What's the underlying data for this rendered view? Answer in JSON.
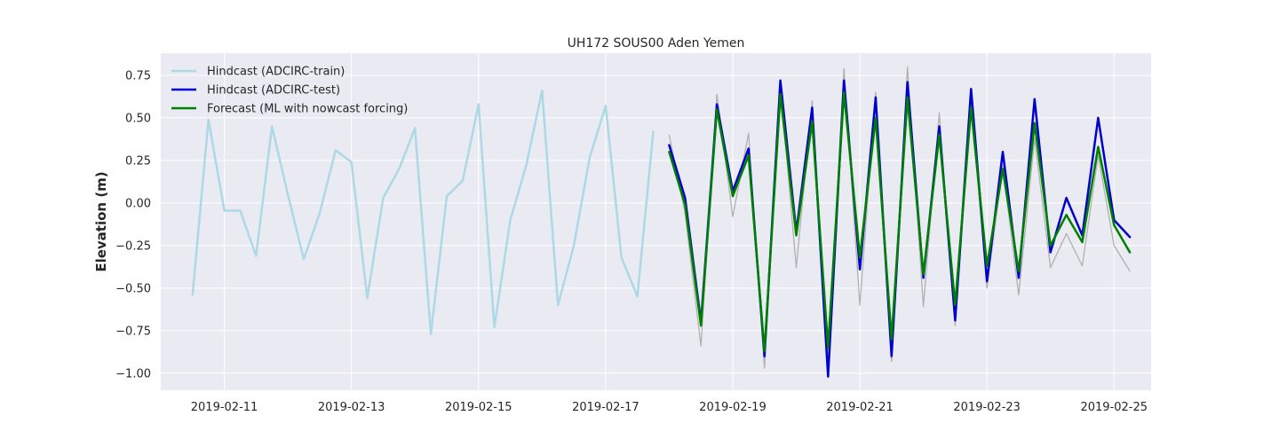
{
  "chart_data": {
    "type": "line",
    "title": "UH172 SOUS00 Aden Yemen",
    "xlabel": "",
    "ylabel": "Elevation (m)",
    "xlim": [
      "2019-02-10T00:00",
      "2019-02-25T14:00"
    ],
    "ylim": [
      -1.1,
      0.88
    ],
    "x_ticks": [
      "2019-02-11",
      "2019-02-13",
      "2019-02-15",
      "2019-02-17",
      "2019-02-19",
      "2019-02-21",
      "2019-02-23",
      "2019-02-25"
    ],
    "y_ticks": [
      0.75,
      0.5,
      0.25,
      0.0,
      -0.25,
      -0.5,
      -0.75,
      -1.0
    ],
    "y_tick_labels": [
      "0.75",
      "0.50",
      "0.25",
      "0.00",
      "−0.25",
      "−0.50",
      "−0.75",
      "−1.00"
    ],
    "grid": true,
    "legend_position": "top-left",
    "background": "#eaeaf2",
    "series": [
      {
        "name": "Hindcast (ADCIRC-train)",
        "color": "#add8e6",
        "width": 2.5,
        "legend": true,
        "x": [
          "2019-02-10T12:00",
          "2019-02-10T18:00",
          "2019-02-11T00:00",
          "2019-02-11T06:00",
          "2019-02-11T12:00",
          "2019-02-11T18:00",
          "2019-02-12T00:00",
          "2019-02-12T06:00",
          "2019-02-12T12:00",
          "2019-02-12T18:00",
          "2019-02-13T00:00",
          "2019-02-13T06:00",
          "2019-02-13T12:00",
          "2019-02-13T18:00",
          "2019-02-14T00:00",
          "2019-02-14T06:00",
          "2019-02-14T12:00",
          "2019-02-14T18:00",
          "2019-02-15T00:00",
          "2019-02-15T06:00",
          "2019-02-15T12:00",
          "2019-02-15T18:00",
          "2019-02-16T00:00",
          "2019-02-16T06:00",
          "2019-02-16T12:00",
          "2019-02-16T18:00",
          "2019-02-17T00:00",
          "2019-02-17T06:00",
          "2019-02-17T12:00",
          "2019-02-17T18:00"
        ],
        "y": [
          -0.54,
          0.49,
          -0.045,
          -0.045,
          -0.31,
          0.45,
          0.05,
          -0.33,
          -0.06,
          0.31,
          0.24,
          -0.56,
          0.03,
          0.2,
          0.44,
          -0.77,
          0.04,
          0.13,
          0.58,
          -0.73,
          -0.1,
          0.22,
          0.66,
          -0.6,
          -0.25,
          0.27,
          0.57,
          -0.32,
          -0.55,
          0.42
        ]
      },
      {
        "name": "",
        "color": "#b0b0b0",
        "width": 1.3,
        "legend": false,
        "x": [
          "2019-02-18T00:00",
          "2019-02-18T06:00",
          "2019-02-18T12:00",
          "2019-02-18T18:00",
          "2019-02-19T00:00",
          "2019-02-19T06:00",
          "2019-02-19T12:00",
          "2019-02-19T18:00",
          "2019-02-20T00:00",
          "2019-02-20T06:00",
          "2019-02-20T12:00",
          "2019-02-20T18:00",
          "2019-02-21T00:00",
          "2019-02-21T06:00",
          "2019-02-21T12:00",
          "2019-02-21T18:00",
          "2019-02-22T00:00",
          "2019-02-22T06:00",
          "2019-02-22T12:00",
          "2019-02-22T18:00",
          "2019-02-23T00:00",
          "2019-02-23T06:00",
          "2019-02-23T12:00",
          "2019-02-23T18:00",
          "2019-02-24T00:00",
          "2019-02-24T06:00",
          "2019-02-24T12:00",
          "2019-02-24T18:00",
          "2019-02-25T00:00",
          "2019-02-25T06:00"
        ],
        "y": [
          0.4,
          -0.06,
          -0.84,
          0.64,
          -0.08,
          0.41,
          -0.97,
          0.7,
          -0.38,
          0.6,
          -0.92,
          0.79,
          -0.6,
          0.65,
          -0.93,
          0.8,
          -0.61,
          0.53,
          -0.72,
          0.58,
          -0.5,
          0.22,
          -0.54,
          0.38,
          -0.38,
          -0.18,
          -0.37,
          0.28,
          -0.25,
          -0.4
        ]
      },
      {
        "name": "Hindcast (ADCIRC-test)",
        "color": "#0000cd",
        "width": 2.5,
        "legend": true,
        "x": [
          "2019-02-18T00:00",
          "2019-02-18T06:00",
          "2019-02-18T12:00",
          "2019-02-18T18:00",
          "2019-02-19T00:00",
          "2019-02-19T06:00",
          "2019-02-19T12:00",
          "2019-02-19T18:00",
          "2019-02-20T00:00",
          "2019-02-20T06:00",
          "2019-02-20T12:00",
          "2019-02-20T18:00",
          "2019-02-21T00:00",
          "2019-02-21T06:00",
          "2019-02-21T12:00",
          "2019-02-21T18:00",
          "2019-02-22T00:00",
          "2019-02-22T06:00",
          "2019-02-22T12:00",
          "2019-02-22T18:00",
          "2019-02-23T00:00",
          "2019-02-23T06:00",
          "2019-02-23T12:00",
          "2019-02-23T18:00",
          "2019-02-24T00:00",
          "2019-02-24T06:00",
          "2019-02-24T12:00",
          "2019-02-24T18:00",
          "2019-02-25T00:00",
          "2019-02-25T06:00"
        ],
        "y": [
          0.34,
          0.03,
          -0.7,
          0.58,
          0.07,
          0.32,
          -0.9,
          0.72,
          -0.17,
          0.56,
          -1.02,
          0.72,
          -0.39,
          0.62,
          -0.9,
          0.71,
          -0.44,
          0.45,
          -0.69,
          0.67,
          -0.46,
          0.3,
          -0.44,
          0.61,
          -0.29,
          0.03,
          -0.19,
          0.5,
          -0.1,
          -0.2
        ]
      },
      {
        "name": "Forecast (ML with nowcast forcing)",
        "color": "#008000",
        "width": 2.5,
        "legend": true,
        "x": [
          "2019-02-18T00:00",
          "2019-02-18T06:00",
          "2019-02-18T12:00",
          "2019-02-18T18:00",
          "2019-02-19T00:00",
          "2019-02-19T06:00",
          "2019-02-19T12:00",
          "2019-02-19T18:00",
          "2019-02-20T00:00",
          "2019-02-20T06:00",
          "2019-02-20T12:00",
          "2019-02-20T18:00",
          "2019-02-21T00:00",
          "2019-02-21T06:00",
          "2019-02-21T12:00",
          "2019-02-21T18:00",
          "2019-02-22T00:00",
          "2019-02-22T06:00",
          "2019-02-22T12:00",
          "2019-02-22T18:00",
          "2019-02-23T00:00",
          "2019-02-23T06:00",
          "2019-02-23T12:00",
          "2019-02-23T18:00",
          "2019-02-24T00:00",
          "2019-02-24T06:00",
          "2019-02-24T12:00",
          "2019-02-24T18:00",
          "2019-02-25T00:00",
          "2019-02-25T06:00"
        ],
        "y": [
          0.3,
          -0.01,
          -0.72,
          0.55,
          0.04,
          0.28,
          -0.87,
          0.64,
          -0.19,
          0.48,
          -0.85,
          0.65,
          -0.32,
          0.5,
          -0.8,
          0.62,
          -0.42,
          0.4,
          -0.6,
          0.56,
          -0.37,
          0.2,
          -0.4,
          0.47,
          -0.25,
          -0.07,
          -0.23,
          0.33,
          -0.13,
          -0.29
        ]
      }
    ]
  }
}
